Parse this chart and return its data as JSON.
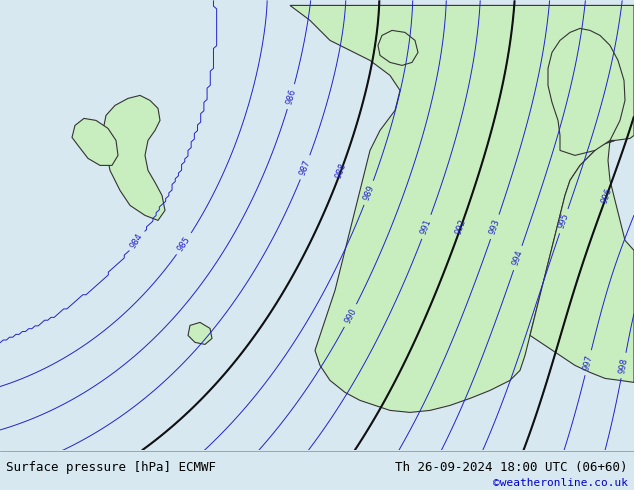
{
  "title_left": "Surface pressure [hPa] ECMWF",
  "title_right": "Th 26-09-2024 18:00 UTC (06+60)",
  "copyright": "©weatheronline.co.uk",
  "bg_color": "#d8e8f0",
  "land_color": "#c8eec0",
  "border_color": "#333333",
  "isobar_color_blue": "#2222cc",
  "isobar_color_red": "#cc2222",
  "isobar_color_black": "#111111",
  "bottom_bar_color": "#e8f4e8",
  "bottom_text_color": "#000000",
  "copyright_color": "#0000cc",
  "pressure_min": 984,
  "pressure_max": 1004,
  "pressure_step": 1,
  "figsize": [
    6.34,
    4.9
  ],
  "dpi": 100
}
